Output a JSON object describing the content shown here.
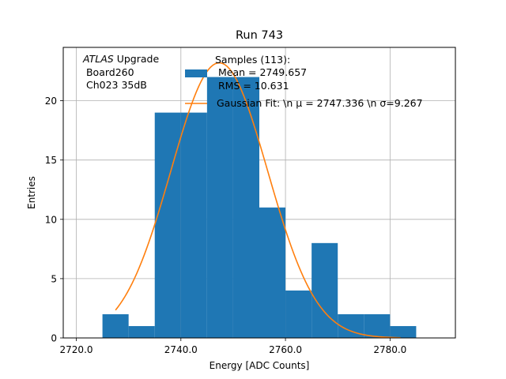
{
  "chart_data": {
    "type": "bar",
    "title": "Run 743",
    "xlabel": "Energy [ADC Counts]",
    "ylabel": "Entries",
    "xlim": [
      2717.5,
      2792.5
    ],
    "ylim": [
      0,
      24.5
    ],
    "x_ticks": [
      2720,
      2740,
      2760,
      2780
    ],
    "x_tick_labels": [
      "2720.0",
      "2740.0",
      "2760.0",
      "2780.0"
    ],
    "y_ticks": [
      0,
      5,
      10,
      15,
      20
    ],
    "y_tick_labels": [
      "0",
      "5",
      "10",
      "15",
      "20"
    ],
    "grid": true,
    "legend_position": "top-center",
    "histogram": {
      "bin_edges": [
        2725,
        2730,
        2735,
        2740,
        2745,
        2750,
        2755,
        2760,
        2765,
        2770,
        2775,
        2780,
        2785
      ],
      "counts": [
        2,
        1,
        19,
        19,
        22,
        22,
        11,
        4,
        8,
        2,
        2,
        1
      ],
      "color": "#1f77b4"
    },
    "gaussian_fit": {
      "mu": 2747.336,
      "sigma": 9.267,
      "amplitude": 23.2,
      "x_range": [
        2727.5,
        2782.0
      ],
      "color": "#ff7f0e"
    },
    "annotation": {
      "line1_italic": "ATLAS",
      "line1_rest": " Upgrade",
      "line2": " Board260",
      "line3": " Ch023 35dB"
    },
    "legend": {
      "samples_line1": "Samples (113):",
      "samples_line2": " Mean = 2749.657",
      "samples_line3": " RMS = 10.631",
      "fit_label": "Gaussian Fit: \\n μ = 2747.336 \\n σ=9.267"
    }
  }
}
